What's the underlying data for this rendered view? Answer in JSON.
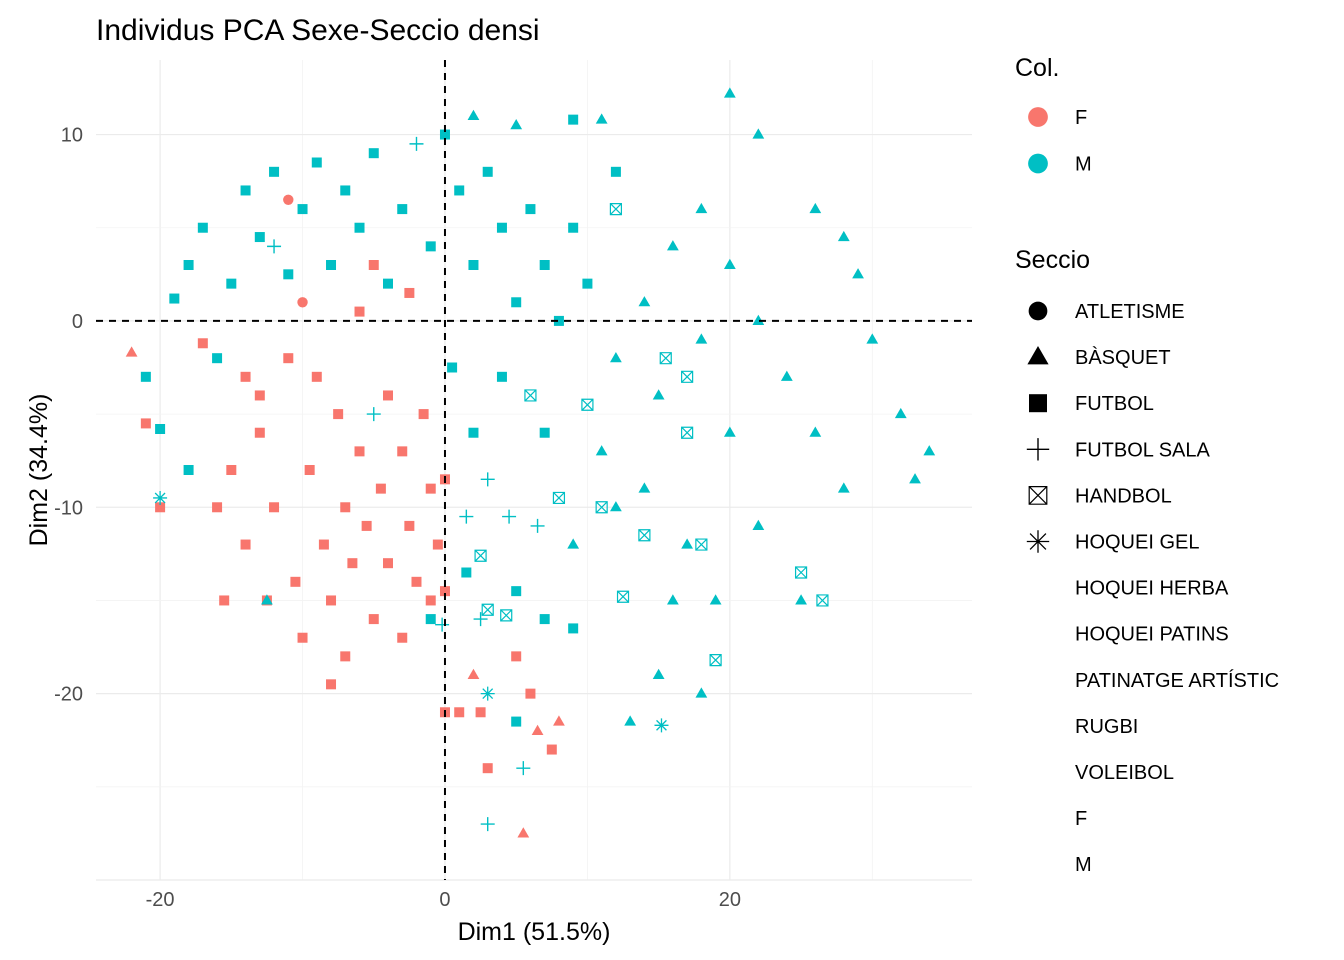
{
  "chart_data": {
    "type": "scatter",
    "title": "Individus PCA Sexe-Seccio densi",
    "xlabel": "Dim1 (51.5%)",
    "ylabel": "Dim2 (34.4%)",
    "xlim": [
      -24.5,
      37
    ],
    "ylim": [
      -30,
      14
    ],
    "x_ticks": [
      -20,
      0,
      20
    ],
    "y_ticks": [
      10,
      0,
      -10,
      -20
    ],
    "x_tick_labels": [
      "-20",
      "0",
      "20"
    ],
    "y_tick_labels": [
      "10",
      "0",
      "-10",
      "-20"
    ],
    "reference_lines": {
      "x": 0,
      "y": 0,
      "style": "dashed"
    },
    "grid": true,
    "legend_position": "right",
    "legends": [
      {
        "title": "Col.",
        "entries": [
          {
            "label": "F",
            "color": "#F8766D"
          },
          {
            "label": "M",
            "color": "#00BFC4"
          }
        ]
      },
      {
        "title": "Seccio",
        "entries": [
          {
            "label": "ATLETISME",
            "shape": "circle"
          },
          {
            "label": "BÀSQUET",
            "shape": "triangle"
          },
          {
            "label": "FUTBOL",
            "shape": "square"
          },
          {
            "label": "FUTBOL SALA",
            "shape": "plus"
          },
          {
            "label": "HANDBOL",
            "shape": "boxcross"
          },
          {
            "label": "HOQUEI GEL",
            "shape": "asterisk"
          },
          {
            "label": "HOQUEI HERBA",
            "shape": "none"
          },
          {
            "label": "HOQUEI PATINS",
            "shape": "none"
          },
          {
            "label": "PATINATGE ARTÍSTIC",
            "shape": "none"
          },
          {
            "label": "RUGBI",
            "shape": "none"
          },
          {
            "label": "VOLEIBOL",
            "shape": "none"
          },
          {
            "label": "F",
            "shape": "none"
          },
          {
            "label": "M",
            "shape": "none"
          }
        ]
      }
    ],
    "colors": {
      "F": "#F8766D",
      "M": "#00BFC4"
    },
    "series": [
      {
        "name": "F",
        "color": "#F8766D",
        "points": [
          {
            "x": -22,
            "y": -1.7,
            "shape": "triangle"
          },
          {
            "x": -21,
            "y": -5.5,
            "shape": "square"
          },
          {
            "x": -17,
            "y": -1.2,
            "shape": "square"
          },
          {
            "x": -15.5,
            "y": -15,
            "shape": "square"
          },
          {
            "x": -15,
            "y": -8,
            "shape": "square"
          },
          {
            "x": -14,
            "y": -3,
            "shape": "square"
          },
          {
            "x": -14,
            "y": -12,
            "shape": "square"
          },
          {
            "x": -13,
            "y": -4,
            "shape": "square"
          },
          {
            "x": -13,
            "y": -6,
            "shape": "square"
          },
          {
            "x": -12.5,
            "y": -15,
            "shape": "square"
          },
          {
            "x": -12,
            "y": -10,
            "shape": "square"
          },
          {
            "x": -11,
            "y": -2,
            "shape": "square"
          },
          {
            "x": -11,
            "y": 6.5,
            "shape": "circle"
          },
          {
            "x": -10.5,
            "y": -14,
            "shape": "square"
          },
          {
            "x": -10,
            "y": -17,
            "shape": "square"
          },
          {
            "x": -9.5,
            "y": -8,
            "shape": "square"
          },
          {
            "x": -9,
            "y": -3,
            "shape": "square"
          },
          {
            "x": -8.5,
            "y": -12,
            "shape": "square"
          },
          {
            "x": -8,
            "y": -15,
            "shape": "square"
          },
          {
            "x": -8,
            "y": -19.5,
            "shape": "square"
          },
          {
            "x": -7.5,
            "y": -5,
            "shape": "square"
          },
          {
            "x": -7,
            "y": -10,
            "shape": "square"
          },
          {
            "x": -7,
            "y": -18,
            "shape": "square"
          },
          {
            "x": -6.5,
            "y": -13,
            "shape": "square"
          },
          {
            "x": -6,
            "y": -7,
            "shape": "square"
          },
          {
            "x": -6,
            "y": 0.5,
            "shape": "square"
          },
          {
            "x": -5.5,
            "y": -11,
            "shape": "square"
          },
          {
            "x": -5,
            "y": -16,
            "shape": "square"
          },
          {
            "x": -4.5,
            "y": -9,
            "shape": "square"
          },
          {
            "x": -4,
            "y": -13,
            "shape": "square"
          },
          {
            "x": -4,
            "y": -4,
            "shape": "square"
          },
          {
            "x": -3,
            "y": -7,
            "shape": "square"
          },
          {
            "x": -3,
            "y": -17,
            "shape": "square"
          },
          {
            "x": -2.5,
            "y": -11,
            "shape": "square"
          },
          {
            "x": -2,
            "y": -14,
            "shape": "square"
          },
          {
            "x": -1.5,
            "y": -5,
            "shape": "square"
          },
          {
            "x": -1,
            "y": -9,
            "shape": "square"
          },
          {
            "x": -1,
            "y": -15,
            "shape": "square"
          },
          {
            "x": -0.5,
            "y": -12,
            "shape": "square"
          },
          {
            "x": 0,
            "y": -8.5,
            "shape": "square"
          },
          {
            "x": 0,
            "y": -14.5,
            "shape": "square"
          },
          {
            "x": 0,
            "y": -21,
            "shape": "square"
          },
          {
            "x": 1,
            "y": -21,
            "shape": "square"
          },
          {
            "x": 2,
            "y": -19,
            "shape": "triangle"
          },
          {
            "x": 2.5,
            "y": -21,
            "shape": "square"
          },
          {
            "x": 3,
            "y": -24,
            "shape": "square"
          },
          {
            "x": 5,
            "y": -18,
            "shape": "square"
          },
          {
            "x": 5.5,
            "y": -27.5,
            "shape": "triangle"
          },
          {
            "x": 6,
            "y": -20,
            "shape": "square"
          },
          {
            "x": 6.5,
            "y": -22,
            "shape": "triangle"
          },
          {
            "x": 7.5,
            "y": -23,
            "shape": "square"
          },
          {
            "x": 8,
            "y": -21.5,
            "shape": "triangle"
          },
          {
            "x": -20,
            "y": -10,
            "shape": "square"
          },
          {
            "x": -16,
            "y": -10,
            "shape": "square"
          },
          {
            "x": -10,
            "y": 1,
            "shape": "circle"
          },
          {
            "x": -5,
            "y": 3,
            "shape": "square"
          },
          {
            "x": -2.5,
            "y": 1.5,
            "shape": "square"
          }
        ]
      },
      {
        "name": "M",
        "color": "#00BFC4",
        "points": [
          {
            "x": -20,
            "y": -9.5,
            "shape": "asterisk"
          },
          {
            "x": -20,
            "y": -5.8,
            "shape": "square"
          },
          {
            "x": -21,
            "y": -3,
            "shape": "square"
          },
          {
            "x": -19,
            "y": 1.2,
            "shape": "square"
          },
          {
            "x": -18,
            "y": -8,
            "shape": "square"
          },
          {
            "x": -18,
            "y": 3,
            "shape": "square"
          },
          {
            "x": -17,
            "y": 5,
            "shape": "square"
          },
          {
            "x": -16,
            "y": -2,
            "shape": "square"
          },
          {
            "x": -15,
            "y": 2,
            "shape": "square"
          },
          {
            "x": -14,
            "y": 7,
            "shape": "square"
          },
          {
            "x": -13,
            "y": 4.5,
            "shape": "square"
          },
          {
            "x": -12,
            "y": 8,
            "shape": "square"
          },
          {
            "x": -11,
            "y": 2.5,
            "shape": "square"
          },
          {
            "x": -10,
            "y": 6,
            "shape": "square"
          },
          {
            "x": -9,
            "y": 8.5,
            "shape": "square"
          },
          {
            "x": -8,
            "y": 3,
            "shape": "square"
          },
          {
            "x": -7,
            "y": 7,
            "shape": "square"
          },
          {
            "x": -6,
            "y": 5,
            "shape": "square"
          },
          {
            "x": -5,
            "y": 9,
            "shape": "square"
          },
          {
            "x": -4,
            "y": 2,
            "shape": "square"
          },
          {
            "x": -3,
            "y": 6,
            "shape": "square"
          },
          {
            "x": -2,
            "y": 9.5,
            "shape": "plus"
          },
          {
            "x": -1,
            "y": 4,
            "shape": "square"
          },
          {
            "x": 0,
            "y": 10,
            "shape": "square"
          },
          {
            "x": 1,
            "y": 7,
            "shape": "square"
          },
          {
            "x": 2,
            "y": 3,
            "shape": "square"
          },
          {
            "x": 3,
            "y": 8,
            "shape": "square"
          },
          {
            "x": 4,
            "y": 5,
            "shape": "square"
          },
          {
            "x": 5,
            "y": 1,
            "shape": "square"
          },
          {
            "x": 6,
            "y": 6,
            "shape": "square"
          },
          {
            "x": 7,
            "y": 3,
            "shape": "square"
          },
          {
            "x": 8,
            "y": 0,
            "shape": "square"
          },
          {
            "x": 9,
            "y": 5,
            "shape": "square"
          },
          {
            "x": 10,
            "y": 2,
            "shape": "square"
          },
          {
            "x": 12,
            "y": 8,
            "shape": "square"
          },
          {
            "x": 9,
            "y": 10.8,
            "shape": "square"
          },
          {
            "x": 11,
            "y": 10.8,
            "shape": "triangle"
          },
          {
            "x": 5,
            "y": 10.5,
            "shape": "triangle"
          },
          {
            "x": 2,
            "y": 11,
            "shape": "triangle"
          },
          {
            "x": 20,
            "y": 12.2,
            "shape": "triangle"
          },
          {
            "x": 22,
            "y": 10,
            "shape": "triangle"
          },
          {
            "x": 26,
            "y": 6,
            "shape": "triangle"
          },
          {
            "x": 28,
            "y": 4.5,
            "shape": "triangle"
          },
          {
            "x": 29,
            "y": 2.5,
            "shape": "triangle"
          },
          {
            "x": 30,
            "y": -1,
            "shape": "triangle"
          },
          {
            "x": 32,
            "y": -5,
            "shape": "triangle"
          },
          {
            "x": 34,
            "y": -7,
            "shape": "triangle"
          },
          {
            "x": 33,
            "y": -8.5,
            "shape": "triangle"
          },
          {
            "x": 28,
            "y": -9,
            "shape": "triangle"
          },
          {
            "x": 26,
            "y": -6,
            "shape": "triangle"
          },
          {
            "x": 24,
            "y": -3,
            "shape": "triangle"
          },
          {
            "x": 22,
            "y": 0,
            "shape": "triangle"
          },
          {
            "x": 20,
            "y": 3,
            "shape": "triangle"
          },
          {
            "x": 18,
            "y": 6,
            "shape": "triangle"
          },
          {
            "x": 16,
            "y": 4,
            "shape": "triangle"
          },
          {
            "x": 14,
            "y": 1,
            "shape": "triangle"
          },
          {
            "x": 12,
            "y": -2,
            "shape": "triangle"
          },
          {
            "x": 15,
            "y": -4,
            "shape": "triangle"
          },
          {
            "x": 18,
            "y": -1,
            "shape": "triangle"
          },
          {
            "x": 20,
            "y": -6,
            "shape": "triangle"
          },
          {
            "x": 22,
            "y": -11,
            "shape": "triangle"
          },
          {
            "x": 19,
            "y": -15,
            "shape": "triangle"
          },
          {
            "x": 17,
            "y": -12,
            "shape": "triangle"
          },
          {
            "x": 14,
            "y": -9,
            "shape": "triangle"
          },
          {
            "x": 11,
            "y": -7,
            "shape": "triangle"
          },
          {
            "x": 9,
            "y": -12,
            "shape": "triangle"
          },
          {
            "x": 12,
            "y": -10,
            "shape": "triangle"
          },
          {
            "x": 16,
            "y": -15,
            "shape": "triangle"
          },
          {
            "x": 15,
            "y": -19,
            "shape": "triangle"
          },
          {
            "x": 18,
            "y": -20,
            "shape": "triangle"
          },
          {
            "x": 13,
            "y": -21.5,
            "shape": "triangle"
          },
          {
            "x": 25,
            "y": -15,
            "shape": "triangle"
          },
          {
            "x": 26.5,
            "y": -15,
            "shape": "boxcross"
          },
          {
            "x": 25,
            "y": -13.5,
            "shape": "boxcross"
          },
          {
            "x": 18,
            "y": -12,
            "shape": "boxcross"
          },
          {
            "x": 14,
            "y": -11.5,
            "shape": "boxcross"
          },
          {
            "x": 12.5,
            "y": -14.8,
            "shape": "boxcross"
          },
          {
            "x": 19,
            "y": -18.2,
            "shape": "boxcross"
          },
          {
            "x": 8,
            "y": -9.5,
            "shape": "boxcross"
          },
          {
            "x": 11,
            "y": -10,
            "shape": "boxcross"
          },
          {
            "x": 2.5,
            "y": -12.6,
            "shape": "boxcross"
          },
          {
            "x": 3,
            "y": -15.5,
            "shape": "boxcross"
          },
          {
            "x": 4.3,
            "y": -15.8,
            "shape": "boxcross"
          },
          {
            "x": 6,
            "y": -4,
            "shape": "boxcross"
          },
          {
            "x": 10,
            "y": -4.5,
            "shape": "boxcross"
          },
          {
            "x": 17,
            "y": -6,
            "shape": "boxcross"
          },
          {
            "x": 15.5,
            "y": -2,
            "shape": "boxcross"
          },
          {
            "x": 17,
            "y": -3,
            "shape": "boxcross"
          },
          {
            "x": 12,
            "y": 6,
            "shape": "boxcross"
          },
          {
            "x": 3,
            "y": -20,
            "shape": "asterisk"
          },
          {
            "x": 15.2,
            "y": -21.7,
            "shape": "asterisk"
          },
          {
            "x": 3,
            "y": -27,
            "shape": "plus"
          },
          {
            "x": 5.5,
            "y": -24,
            "shape": "plus"
          },
          {
            "x": 1.5,
            "y": -10.5,
            "shape": "plus"
          },
          {
            "x": 4.5,
            "y": -10.5,
            "shape": "plus"
          },
          {
            "x": 6.5,
            "y": -11,
            "shape": "plus"
          },
          {
            "x": 2.5,
            "y": -16,
            "shape": "plus"
          },
          {
            "x": -0.2,
            "y": -16.3,
            "shape": "plus"
          },
          {
            "x": 3,
            "y": -8.5,
            "shape": "plus"
          },
          {
            "x": -5,
            "y": -5,
            "shape": "plus"
          },
          {
            "x": -12,
            "y": 4,
            "shape": "plus"
          },
          {
            "x": 1.5,
            "y": -13.5,
            "shape": "square"
          },
          {
            "x": 7,
            "y": -16,
            "shape": "square"
          },
          {
            "x": 9,
            "y": -16.5,
            "shape": "square"
          },
          {
            "x": 5,
            "y": -14.5,
            "shape": "square"
          },
          {
            "x": 5,
            "y": -21.5,
            "shape": "square"
          },
          {
            "x": -12.5,
            "y": -15,
            "shape": "triangle"
          },
          {
            "x": -1,
            "y": -16,
            "shape": "square"
          },
          {
            "x": 0.5,
            "y": -2.5,
            "shape": "square"
          },
          {
            "x": 2,
            "y": -6,
            "shape": "square"
          },
          {
            "x": 4,
            "y": -3,
            "shape": "square"
          },
          {
            "x": 7,
            "y": -6,
            "shape": "square"
          }
        ]
      }
    ]
  }
}
